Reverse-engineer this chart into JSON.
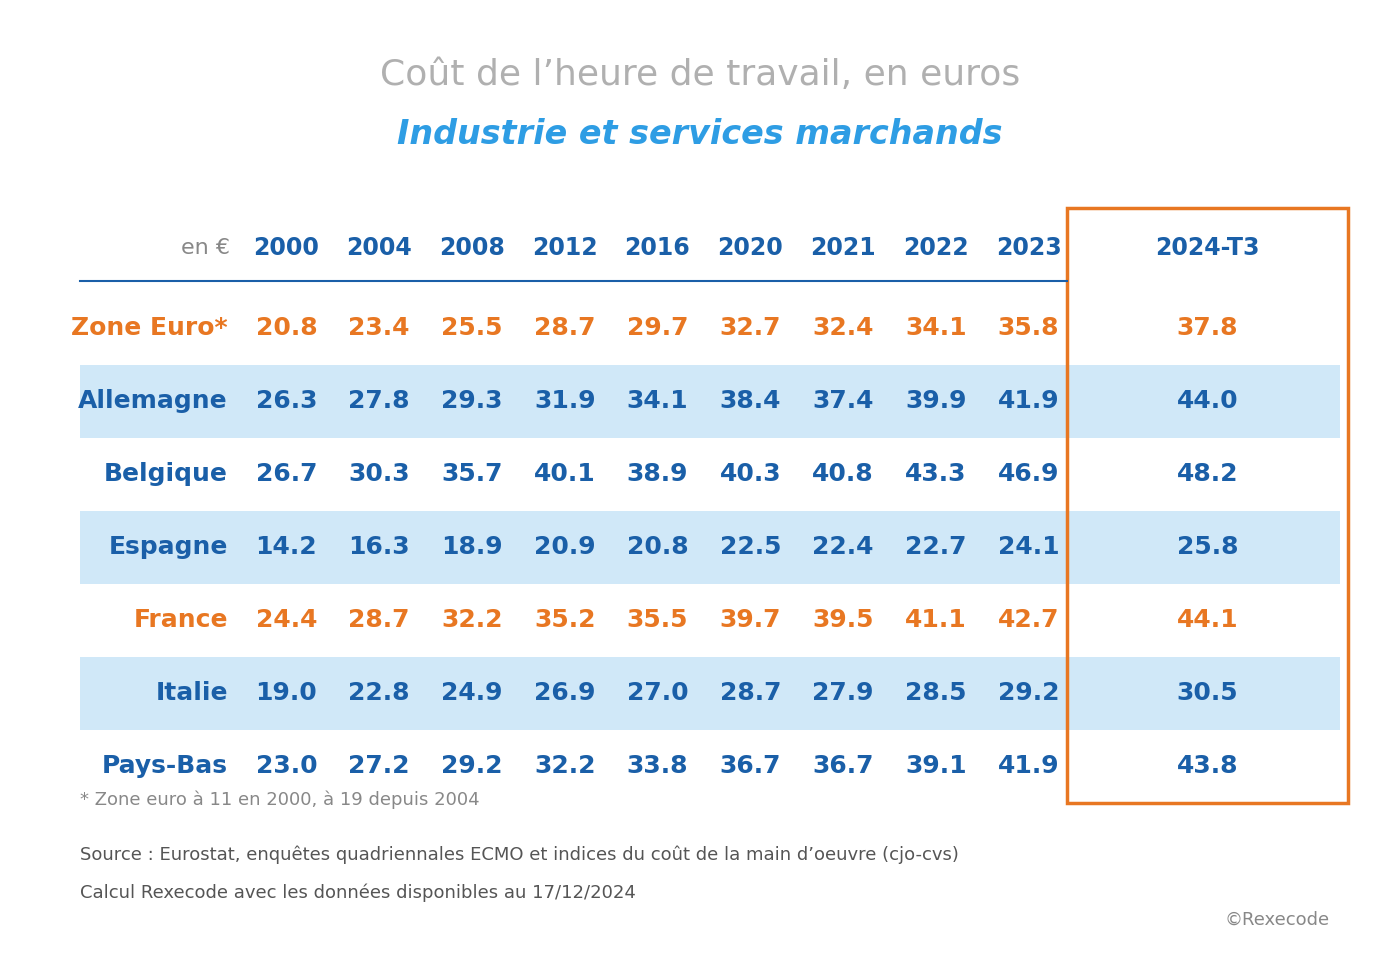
{
  "title_line1": "Coût de l’heure de travail, en euros",
  "title_line2": "Industrie et services marchands",
  "title_line1_color": "#b0b0b0",
  "title_line2_color": "#2e9de4",
  "col_header_label": "en €",
  "columns": [
    "2000",
    "2004",
    "2008",
    "2012",
    "2016",
    "2020",
    "2021",
    "2022",
    "2023",
    "2024-T3"
  ],
  "rows": [
    {
      "label": "Zone Euro*",
      "label_color": "#E87722",
      "values": [
        20.8,
        23.4,
        25.5,
        28.7,
        29.7,
        32.7,
        32.4,
        34.1,
        35.8,
        37.8
      ],
      "value_color": "#E87722",
      "bg_color": null
    },
    {
      "label": "Allemagne",
      "label_color": "#1a5fa8",
      "values": [
        26.3,
        27.8,
        29.3,
        31.9,
        34.1,
        38.4,
        37.4,
        39.9,
        41.9,
        44.0
      ],
      "value_color": "#1a5fa8",
      "bg_color": "#d0e8f8"
    },
    {
      "label": "Belgique",
      "label_color": "#1a5fa8",
      "values": [
        26.7,
        30.3,
        35.7,
        40.1,
        38.9,
        40.3,
        40.8,
        43.3,
        46.9,
        48.2
      ],
      "value_color": "#1a5fa8",
      "bg_color": null
    },
    {
      "label": "Espagne",
      "label_color": "#1a5fa8",
      "values": [
        14.2,
        16.3,
        18.9,
        20.9,
        20.8,
        22.5,
        22.4,
        22.7,
        24.1,
        25.8
      ],
      "value_color": "#1a5fa8",
      "bg_color": "#d0e8f8"
    },
    {
      "label": "France",
      "label_color": "#E87722",
      "values": [
        24.4,
        28.7,
        32.2,
        35.2,
        35.5,
        39.7,
        39.5,
        41.1,
        42.7,
        44.1
      ],
      "value_color": "#E87722",
      "bg_color": null
    },
    {
      "label": "Italie",
      "label_color": "#1a5fa8",
      "values": [
        19.0,
        22.8,
        24.9,
        26.9,
        27.0,
        28.7,
        27.9,
        28.5,
        29.2,
        30.5
      ],
      "value_color": "#1a5fa8",
      "bg_color": "#d0e8f8"
    },
    {
      "label": "Pays-Bas",
      "label_color": "#1a5fa8",
      "values": [
        23.0,
        27.2,
        29.2,
        32.2,
        33.8,
        36.7,
        36.7,
        39.1,
        41.9,
        43.8
      ],
      "value_color": "#1a5fa8",
      "bg_color": null
    }
  ],
  "last_col_box_color": "#E87722",
  "header_line_color": "#1a5fa8",
  "footnote1": "* Zone euro à 11 en 2000, à 19 depuis 2004",
  "footnote2": "Source : Eurostat, enquêtes quadriennales ECMO et indices du coût de la main d’oeuvre (cjo-cvs)",
  "footnote3": "Calcul Rexecode avec les données disponibles au 17/12/2024",
  "copyright": "©Rexecode",
  "bg_color": "#ffffff",
  "col_header_color": "#1a5fa8"
}
